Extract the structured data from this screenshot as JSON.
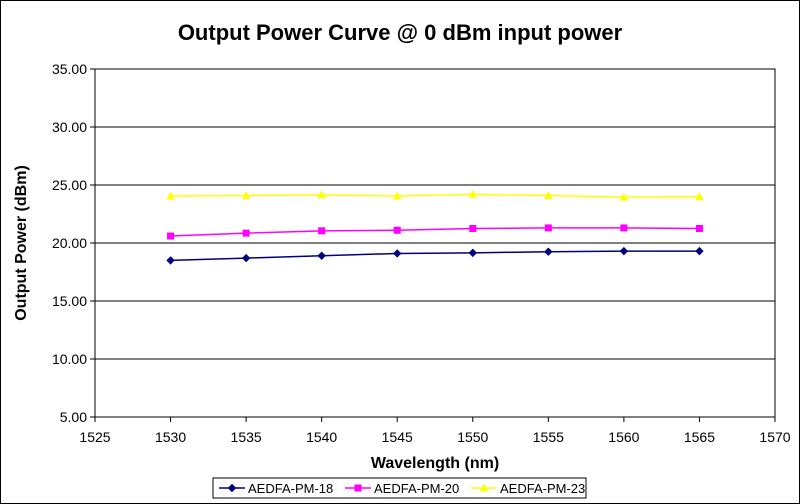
{
  "chart_data": {
    "type": "line",
    "title": "Output Power Curve @ 0 dBm input power",
    "xlabel": "Wavelength (nm)",
    "ylabel": "Output Power (dBm)",
    "xlim": [
      1525,
      1570
    ],
    "ylim": [
      5,
      35
    ],
    "xticks": [
      "1525",
      "1530",
      "1535",
      "1540",
      "1545",
      "1550",
      "1555",
      "1560",
      "1565",
      "1570"
    ],
    "yticks": [
      "5.00",
      "10.00",
      "15.00",
      "20.00",
      "25.00",
      "30.00",
      "35.00"
    ],
    "grid": "horizontal",
    "legend_position": "bottom",
    "x": [
      1530,
      1535,
      1540,
      1545,
      1550,
      1555,
      1560,
      1565
    ],
    "series": [
      {
        "name": "AEDFA-PM-18",
        "color": "#000080",
        "marker": "diamond",
        "values": [
          18.5,
          18.7,
          18.9,
          19.1,
          19.15,
          19.25,
          19.3,
          19.3
        ]
      },
      {
        "name": "AEDFA-PM-20",
        "color": "#ff00ff",
        "marker": "square",
        "values": [
          20.6,
          20.85,
          21.05,
          21.1,
          21.25,
          21.3,
          21.3,
          21.25
        ]
      },
      {
        "name": "AEDFA-PM-23",
        "color": "#ffff00",
        "marker": "triangle",
        "values": [
          24.05,
          24.1,
          24.15,
          24.05,
          24.2,
          24.1,
          23.95,
          24.0
        ]
      }
    ]
  }
}
